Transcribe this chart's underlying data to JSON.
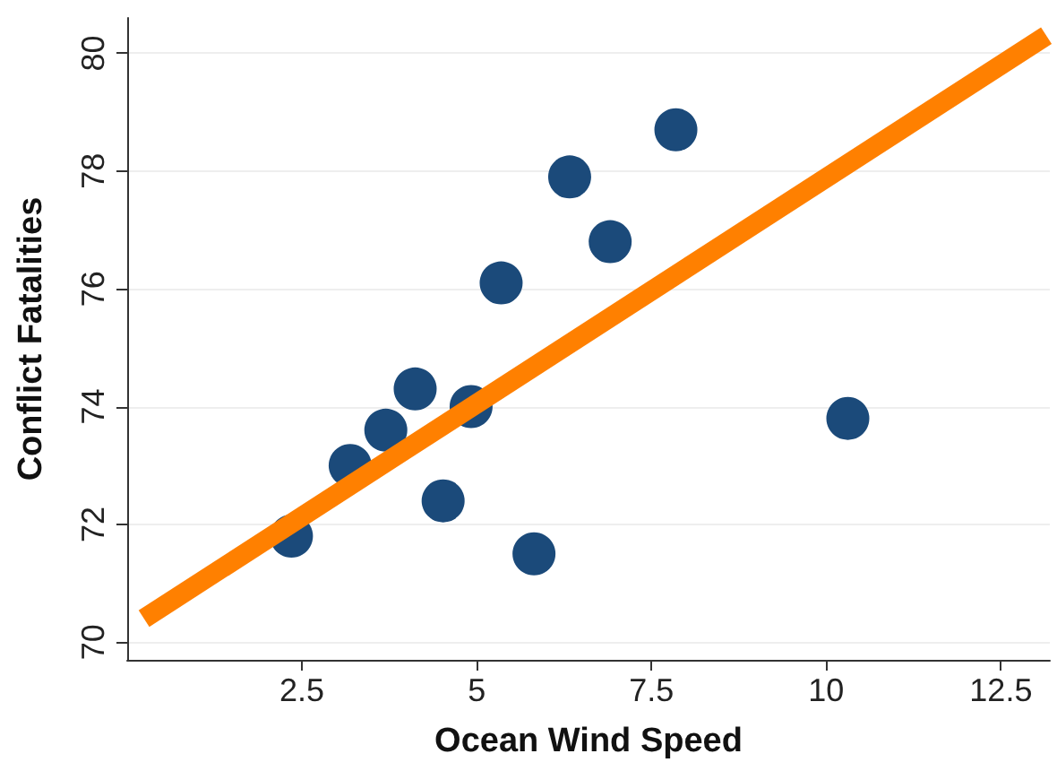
{
  "chart_data": {
    "type": "scatter",
    "xlabel": "Ocean Wind Speed",
    "ylabel": "Conflict Fatalities",
    "x": [
      2.35,
      3.19,
      3.7,
      4.12,
      4.92,
      4.52,
      5.35,
      5.82,
      6.33,
      6.91,
      7.85,
      10.31
    ],
    "series": [
      {
        "color": "#1b4a7a",
        "values": [
          71.8,
          73.0,
          73.6,
          74.3,
          74.0,
          72.4,
          76.1,
          71.5,
          77.9,
          76.8,
          78.7,
          73.8
        ]
      },
      {
        "type": "line",
        "color": "#ff8000",
        "x": [
          0.24,
          13.15
        ],
        "values": [
          70.4,
          80.3
        ],
        "marker": "none"
      }
    ],
    "xlim": [
      0,
      13.2
    ],
    "xticks": [
      2.5,
      5,
      7.5,
      10,
      12.5
    ],
    "ylim": [
      69.7,
      80.6
    ],
    "yticks": [
      70,
      72,
      74,
      76,
      78,
      80
    ],
    "grid": "y",
    "marker": "circle"
  }
}
